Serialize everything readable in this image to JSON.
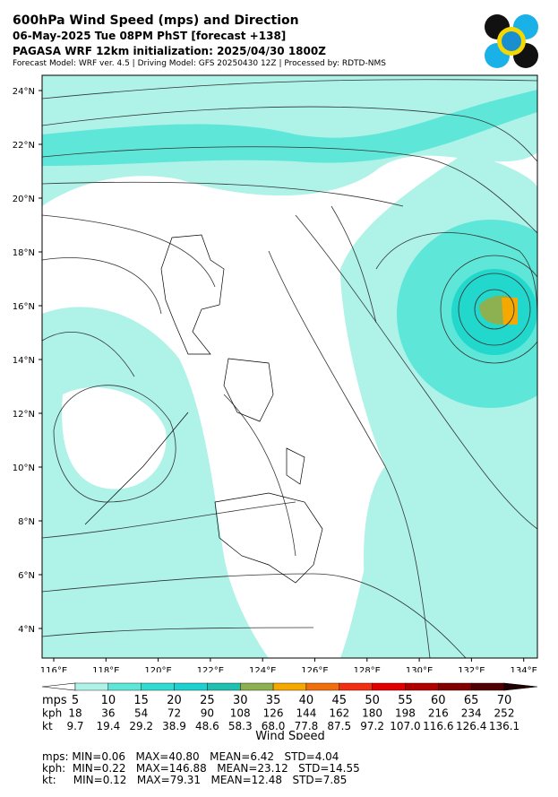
{
  "header": {
    "title": "600hPa Wind Speed (mps) and Direction",
    "subtitle": "06-May-2025 Tue 08PM PhST [forecast +138]",
    "init": "PAGASA WRF 12km initialization: 2025/04/30 1800Z",
    "info": "Forecast Model: WRF ver. 4.5 | Driving Model: GFS 20250430 12Z | Processed by: RDTD-NMS"
  },
  "map": {
    "lat_labels": [
      "24°N",
      "22°N",
      "20°N",
      "18°N",
      "16°N",
      "14°N",
      "12°N",
      "10°N",
      "8°N",
      "6°N",
      "4°N"
    ],
    "lon_labels": [
      "116°E",
      "118°E",
      "120°E",
      "122°E",
      "124°E",
      "126°E",
      "128°E",
      "130°E",
      "132°E",
      "134°E"
    ]
  },
  "colorbar": {
    "row_labels": [
      "mps",
      "kph",
      "kt"
    ],
    "mps": [
      "5",
      "10",
      "15",
      "20",
      "25",
      "30",
      "35",
      "40",
      "45",
      "50",
      "55",
      "60",
      "65",
      "70"
    ],
    "kph": [
      "18",
      "36",
      "54",
      "72",
      "90",
      "108",
      "126",
      "144",
      "162",
      "180",
      "198",
      "216",
      "234",
      "252"
    ],
    "kt": [
      "9.7",
      "19.4",
      "29.2",
      "38.9",
      "48.6",
      "58.3",
      "68.0",
      "77.8",
      "87.5",
      "97.2",
      "107.0",
      "116.6",
      "126.4",
      "136.1"
    ],
    "label": "Wind Speed"
  },
  "stats": [
    "mps: MIN=0.06   MAX=40.80   MEAN=6.42   STD=4.04",
    "kph:  MIN=0.22   MAX=146.88   MEAN=23.12   STD=14.55",
    "kt:     MIN=0.12   MAX=79.31   MEAN=12.48   STD=7.85"
  ]
}
